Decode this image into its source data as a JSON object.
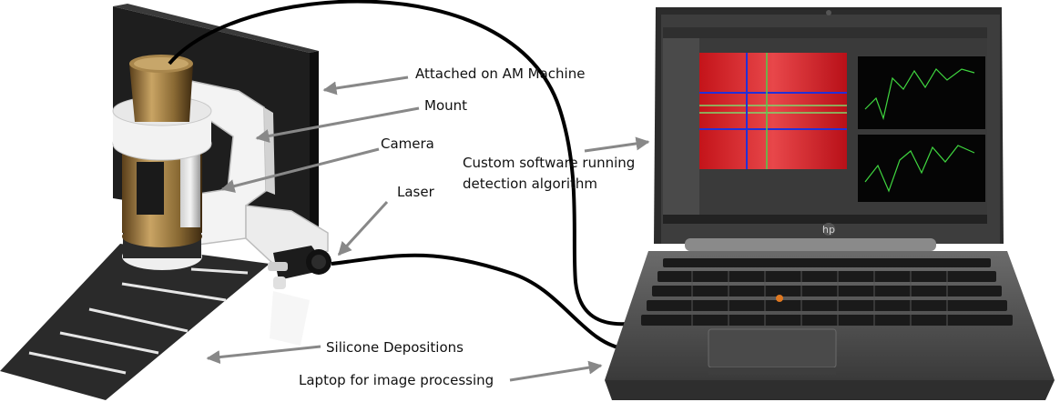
{
  "labels": {
    "attached": "Attached on AM Machine",
    "mount": "Mount",
    "camera": "Camera",
    "laser": "Laser",
    "software_line1": "Custom software running",
    "software_line2": "detection algorithm",
    "silicone": "Silicone Depositions",
    "laptop": "Laptop for image processing"
  },
  "brand": "hp"
}
